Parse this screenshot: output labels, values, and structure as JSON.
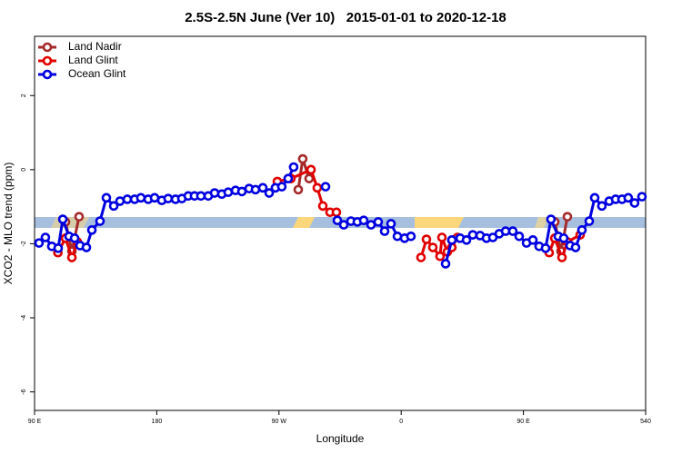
{
  "chart_data": {
    "type": "line",
    "title": "2.5S-2.5N June (Ver 10)   2015-01-01 to 2020-12-18",
    "xlabel": "Longitude",
    "ylabel": "XCO2 - MLO trend (ppm)",
    "xlim": [
      90,
      540
    ],
    "xticks": [
      {
        "value": 90,
        "label": "90 E"
      },
      180,
      {
        "value": 270,
        "label": "90 W"
      },
      {
        "value": 360,
        "label": "0"
      },
      {
        "value": 450,
        "label": "90 E"
      },
      540
    ],
    "ylim": [
      -6.5,
      3.6
    ],
    "yticks": [
      -6,
      -4,
      -2,
      0,
      2
    ],
    "legend": "upper left",
    "series": [
      {
        "name": "Land Nadir",
        "color": "#a52a2a",
        "x": [
          112.8,
          117.5,
          122.8,
          null,
          284.2,
          287.5,
          292.2,
          null,
          473.1,
          477.7,
          482.4
        ],
        "values": [
          -1.41,
          -2.2,
          -1.27,
          null,
          -0.54,
          0.29,
          -0.24,
          null,
          -1.41,
          -2.2,
          -1.27
        ]
      },
      {
        "name": "Land Glint",
        "color": "#e00000",
        "x": [
          107.2,
          112.8,
          117.5,
          121.5,
          null,
          268.8,
          278.8,
          293.6,
          298.2,
          302.3,
          307.6,
          312.3,
          null,
          374.6,
          378.6,
          383.3,
          388.6,
          390,
          394,
          397.3,
          401.4,
          null,
          469,
          473.1,
          478.4,
          482.4,
          491.8
        ],
        "values": [
          -2.24,
          -1.85,
          -2.37,
          -1.95,
          null,
          -0.32,
          -0.24,
          0,
          -0.49,
          -0.98,
          -1.15,
          -1.15,
          null,
          -2.37,
          -1.88,
          -2.1,
          -2.34,
          -1.83,
          -2.22,
          -2.1,
          -1.83,
          null,
          -2.24,
          -1.85,
          -2.37,
          -1.95,
          -1.76
        ]
      },
      {
        "name": "Ocean Glint",
        "color": "#0000e0",
        "x": [
          93.3,
          98,
          102.7,
          107.4,
          110.8,
          115.4,
          119.5,
          123.5,
          128.2,
          132.2,
          138.2,
          142.9,
          148.3,
          152.9,
          158.3,
          163.7,
          168.3,
          173.7,
          178.4,
          183.7,
          188.4,
          193.8,
          198.5,
          203.2,
          207.8,
          212.5,
          217.9,
          222.6,
          227.9,
          232.6,
          238,
          242.7,
          248,
          252.7,
          258.1,
          262.8,
          267.4,
          272.1,
          276.8,
          280.8,
          null,
          304.3,
          null,
          313,
          317.7,
          323,
          327.7,
          332.4,
          337.8,
          343.1,
          347.8,
          352.5,
          357.2,
          362.5,
          367.2,
          null,
          392.7,
          397.3,
          403.4,
          408.1,
          412.7,
          418.1,
          422.8,
          427.5,
          432.2,
          436.9,
          442.2,
          446.9,
          452.3,
          457,
          461.6,
          466.3,
          470.3,
          475.7,
          479.7,
          484.4,
          488.4,
          493.1,
          498.5,
          502.5,
          507.8,
          513.2,
          517.9,
          522.6,
          527.2,
          531.9,
          537.3
        ],
        "values": [
          -1.98,
          -1.83,
          -2.07,
          -2.12,
          -1.34,
          -1.8,
          -1.85,
          -2.05,
          -2.1,
          -1.63,
          -1.39,
          -0.76,
          -0.98,
          -0.85,
          -0.8,
          -0.8,
          -0.76,
          -0.8,
          -0.76,
          -0.83,
          -0.78,
          -0.8,
          -0.78,
          -0.71,
          -0.71,
          -0.71,
          -0.71,
          -0.63,
          -0.66,
          -0.61,
          -0.56,
          -0.59,
          -0.51,
          -0.54,
          -0.49,
          -0.63,
          -0.49,
          -0.46,
          -0.24,
          0.07,
          null,
          -0.46,
          null,
          -1.37,
          -1.49,
          -1.39,
          -1.41,
          -1.37,
          -1.49,
          -1.41,
          -1.66,
          -1.46,
          -1.8,
          -1.85,
          -1.8,
          null,
          -2.54,
          -1.9,
          -1.85,
          -1.9,
          -1.76,
          -1.78,
          -1.85,
          -1.83,
          -1.73,
          -1.66,
          -1.66,
          -1.8,
          -1.98,
          -1.9,
          -2.07,
          -2.12,
          -1.34,
          -1.8,
          -1.85,
          -2.05,
          -2.1,
          -1.63,
          -1.39,
          -0.76,
          -0.98,
          -0.85,
          -0.8,
          -0.8,
          -0.76,
          -0.9,
          -0.73
        ]
      }
    ]
  }
}
